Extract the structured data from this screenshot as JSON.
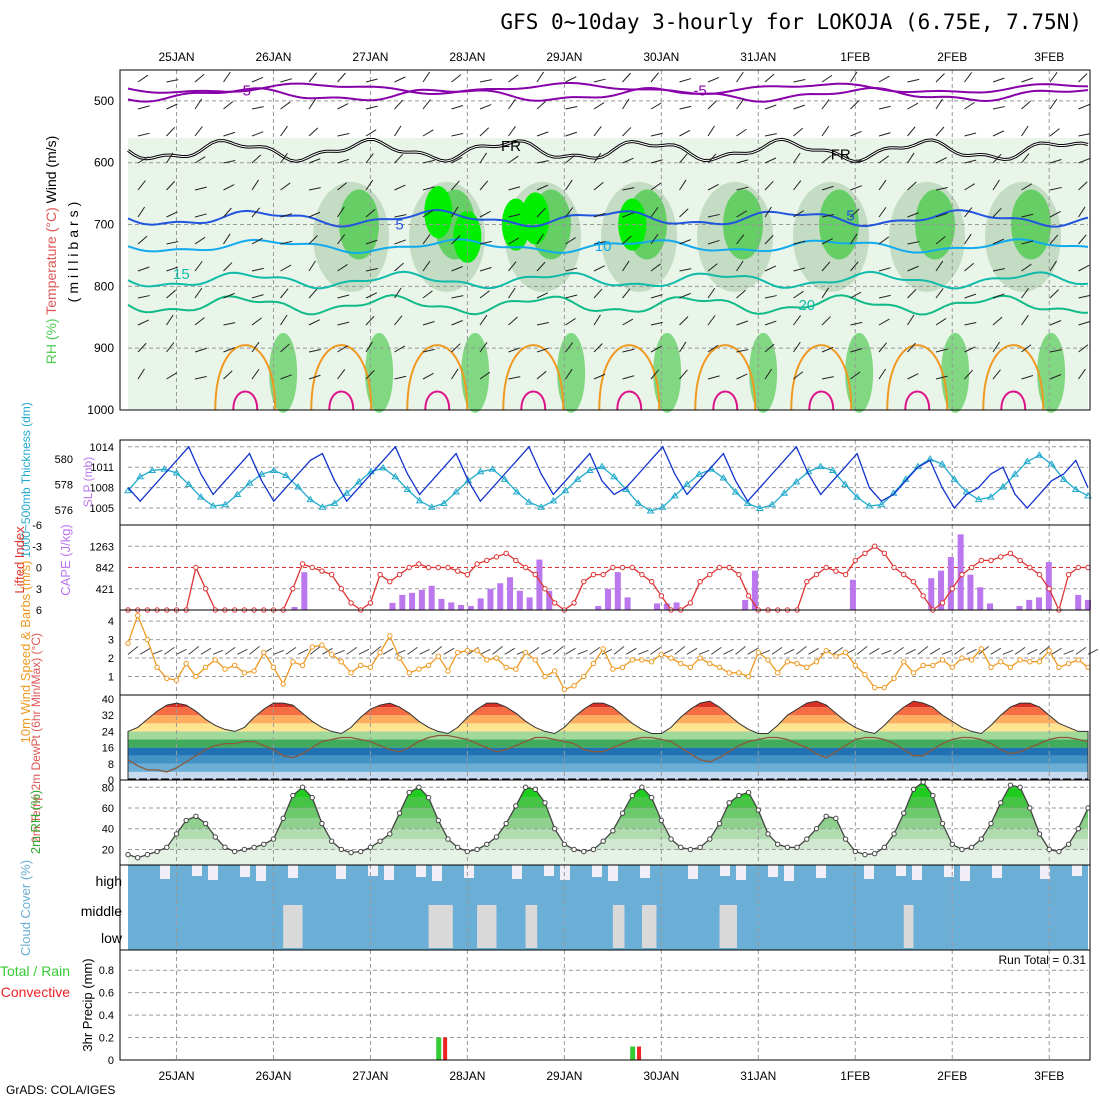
{
  "header": {
    "title": "GFS 0~10day 3-hourly for LOKOJA (6.75E, 7.75N)",
    "credit": "GrADS: COLA/IGES"
  },
  "colors": {
    "grid": "#999999",
    "rh_light": "#d9ecd9",
    "rh_mid": "#b2d2b2",
    "rh_green": "#55cc55",
    "rh_bright": "#00ee00",
    "wind_line": "#8800aa",
    "temp_cold": "#2255dd",
    "temp_cool": "#11aaee",
    "temp_teal": "#11bbaa",
    "temp_warm": "#ee9922",
    "temp_hot": "#dd1188",
    "slp": "#1133cc",
    "thickness": "#22aacc",
    "lifted_index": "#dd3333",
    "cape": "#bb77ee",
    "wind10": "#ee9922",
    "cloud": "#6baed6",
    "cloud_clear": "#d9d9d9",
    "cloud_high_clear": "#f2eef7",
    "precip_total": "#33cc33",
    "precip_conv": "#ee2222"
  },
  "chart_data": [
    {
      "type": "heatmap",
      "panel": "upper-air",
      "x_ticks": [
        "25JAN",
        "26JAN",
        "27JAN",
        "28JAN",
        "29JAN",
        "30JAN",
        "31JAN",
        "1FEB",
        "2FEB",
        "3FEB"
      ],
      "ylabel_parts": [
        "RH (%)",
        "Temperature (°C)",
        "Wind (m/s)"
      ],
      "ylabel_sub": "(millibars)",
      "yticks": [
        500,
        600,
        700,
        800,
        900,
        1000
      ],
      "ylim": [
        1000,
        450
      ],
      "contour_labels": [
        {
          "text": "-5",
          "time": 1.2,
          "p": 483
        },
        {
          "text": "-5",
          "time": 5.9,
          "p": 483
        },
        {
          "text": "FR",
          "time": 3.95,
          "p": 573
        },
        {
          "text": "FR",
          "time": 7.35,
          "p": 587
        },
        {
          "text": "5",
          "time": 2.8,
          "p": 700
        },
        {
          "text": "5",
          "time": 7.45,
          "p": 685
        },
        {
          "text": "10",
          "time": 4.9,
          "p": 735
        },
        {
          "text": "15",
          "time": 0.55,
          "p": 780
        },
        {
          "text": "20",
          "time": 7.0,
          "p": 830
        }
      ]
    },
    {
      "type": "line",
      "panel": "slp-thickness",
      "ylabel_left": "1000~500mb Thickness (dm)",
      "ylabel_right": "SLP (mb)",
      "yticks_left": [
        576,
        578,
        580
      ],
      "yticks_right": [
        1005,
        1008,
        1011,
        1014
      ],
      "series": [
        {
          "name": "SLP",
          "values": [
            1008,
            1006,
            1008,
            1010,
            1012,
            1014,
            1010,
            1007,
            1009,
            1011,
            1013,
            1009,
            1006,
            1008,
            1010,
            1012,
            1013,
            1009,
            1006,
            1008,
            1010,
            1012,
            1014,
            1010,
            1007,
            1009,
            1011,
            1013,
            1009,
            1006,
            1008,
            1010,
            1012,
            1014,
            1010,
            1007,
            1009,
            1011,
            1013,
            1009,
            1007,
            1008,
            1010,
            1012,
            1014,
            1010,
            1007,
            1009,
            1011,
            1013,
            1009,
            1006,
            1008,
            1010,
            1012,
            1014,
            1010,
            1007,
            1009,
            1011,
            1013,
            1008,
            1006,
            1007,
            1009,
            1011,
            1012,
            1008,
            1005,
            1007,
            1008,
            1010,
            1011,
            1007,
            1005,
            1007,
            1009,
            1010,
            1012,
            1008
          ]
        },
        {
          "name": "Thickness",
          "values": [
            577.5,
            578.6,
            579.1,
            579.2,
            578.9,
            578.0,
            577.0,
            576.3,
            576.4,
            577.2,
            578.1,
            578.8,
            579.1,
            578.7,
            577.8,
            576.8,
            576.2,
            576.5,
            577.3,
            578.2,
            579.0,
            579.3,
            578.6,
            577.6,
            576.7,
            576.2,
            576.5,
            577.4,
            578.3,
            579.0,
            579.2,
            578.4,
            577.4,
            576.6,
            576.2,
            576.7,
            577.5,
            578.4,
            579.1,
            579.4,
            578.6,
            577.6,
            576.5,
            575.9,
            576.2,
            577.1,
            578.0,
            578.8,
            579.2,
            578.5,
            577.4,
            576.5,
            576.1,
            576.4,
            577.3,
            578.2,
            579.0,
            579.4,
            579.1,
            578.0,
            577.0,
            576.3,
            576.4,
            577.3,
            578.4,
            579.4,
            580.0,
            579.6,
            578.4,
            577.4,
            576.8,
            577.0,
            577.8,
            578.8,
            579.8,
            580.3,
            579.6,
            578.4,
            577.6,
            577.1
          ]
        }
      ]
    },
    {
      "type": "bar",
      "panel": "li-cape",
      "ylabel_left": "Lifted Index",
      "ylabel_right": "CAPE (J/kg)",
      "yticks_left": [
        -6,
        -3,
        0,
        3,
        6
      ],
      "yticks_right": [
        421,
        842,
        1263
      ],
      "series": [
        {
          "name": "Lifted Index",
          "values": [
            6,
            6,
            6,
            6,
            6,
            6,
            6,
            0,
            3,
            6,
            6,
            6,
            6,
            6,
            6,
            6,
            6,
            3,
            -0.5,
            0,
            0.5,
            1,
            3,
            5,
            6,
            5,
            1,
            2,
            1,
            0,
            -0.5,
            0,
            0,
            0,
            0.5,
            1,
            -0.5,
            -1,
            -1.5,
            -2,
            -1,
            0,
            1,
            3,
            5,
            6,
            5,
            2,
            1,
            1,
            0,
            0,
            0,
            1,
            2,
            4,
            6,
            6,
            5,
            2,
            1,
            0,
            0,
            1,
            4,
            6,
            6,
            6,
            6,
            6,
            2,
            1,
            0,
            0.5,
            1,
            -1,
            -2,
            -3,
            -2,
            0,
            1,
            2,
            4,
            6,
            5,
            3,
            1,
            0,
            -1,
            -1,
            -1.5,
            -2,
            -1,
            0,
            1,
            3,
            6,
            1,
            0,
            0
          ]
        },
        {
          "name": "CAPE",
          "values": [
            0,
            0,
            0,
            0,
            0,
            0,
            0,
            0,
            0,
            0,
            0,
            0,
            0,
            0,
            0,
            0,
            0,
            60,
            750,
            0,
            0,
            0,
            0,
            0,
            0,
            0,
            0,
            140,
            300,
            340,
            400,
            480,
            220,
            150,
            100,
            80,
            230,
            420,
            530,
            650,
            380,
            250,
            1000,
            380,
            0,
            0,
            0,
            0,
            80,
            420,
            750,
            250,
            0,
            0,
            130,
            130,
            150,
            0,
            0,
            0,
            0,
            0,
            0,
            200,
            780,
            0,
            0,
            0,
            0,
            0,
            0,
            0,
            0,
            0,
            600,
            0,
            0,
            0,
            0,
            0,
            0,
            0,
            630,
            780,
            1050,
            1500,
            700,
            450,
            130,
            0,
            0,
            80,
            200,
            250,
            950,
            0,
            0,
            300,
            200
          ]
        }
      ]
    },
    {
      "type": "line",
      "panel": "wind10m",
      "ylabel": "10m Wind Speed & Barbs (m/s)",
      "yticks": [
        1,
        2,
        3,
        4
      ],
      "series": [
        {
          "name": "10m wind speed",
          "values": [
            2.8,
            4.3,
            3.0,
            1.5,
            0.9,
            0.8,
            1.7,
            1.0,
            1.5,
            1.9,
            1.4,
            1.6,
            1.2,
            1.3,
            2.3,
            1.5,
            0.6,
            1.8,
            1.6,
            2.6,
            2.7,
            2.2,
            1.8,
            1.2,
            1.6,
            1.5,
            2.3,
            3.2,
            2.0,
            1.2,
            1.4,
            1.6,
            2.1,
            1.3,
            2.3,
            2.4,
            2.4,
            1.9,
            2.0,
            1.5,
            1.4,
            2.3,
            1.9,
            1.0,
            1.3,
            0.3,
            0.5,
            1.0,
            1.7,
            2.5,
            1.4,
            1.5,
            1.9,
            1.9,
            1.8,
            2.2,
            2.0,
            1.7,
            1.5,
            2.0,
            1.7,
            1.5,
            1.2,
            1.2,
            1.0,
            2.3,
            1.9,
            1.2,
            1.8,
            1.7,
            1.5,
            1.8,
            2.4,
            2.1,
            2.3,
            1.6,
            1.1,
            0.4,
            0.4,
            0.9,
            1.8,
            1.2,
            1.6,
            1.6,
            1.9,
            1.5,
            2.0,
            1.9,
            2.5,
            1.5,
            1.8,
            1.5,
            1.9,
            1.8,
            1.8,
            2.4,
            1.5,
            1.7,
            1.9,
            1.5
          ]
        }
      ]
    },
    {
      "type": "area",
      "panel": "temperature",
      "ylabel": "2m Temp 2m DewPt (6hr Min/Max) (°C)",
      "yticks": [
        0,
        8,
        16,
        24,
        32,
        40
      ],
      "series": [
        {
          "name": "2m Temp",
          "values": [
            24,
            26,
            30,
            34,
            37,
            38,
            37,
            34,
            30,
            27,
            25,
            24,
            26,
            31,
            35,
            38,
            38,
            37,
            33,
            29,
            26,
            24,
            23,
            26,
            31,
            35,
            37,
            38,
            36,
            33,
            29,
            26,
            24,
            23,
            26,
            31,
            35,
            38,
            38,
            36,
            33,
            29,
            26,
            24,
            23,
            26,
            31,
            35,
            38,
            38,
            36,
            32,
            28,
            25,
            23,
            23,
            26,
            31,
            35,
            38,
            39,
            36,
            32,
            28,
            25,
            23,
            23,
            27,
            32,
            35,
            38,
            39,
            37,
            33,
            29,
            26,
            24,
            23,
            27,
            32,
            36,
            39,
            38,
            36,
            32,
            29,
            26,
            24,
            23,
            27,
            32,
            36,
            38,
            38,
            36,
            32,
            28,
            26,
            24,
            24
          ]
        },
        {
          "name": "2m DewPt",
          "values": [
            10,
            7,
            5,
            5,
            4,
            6,
            9,
            12,
            15,
            17,
            18,
            18,
            19,
            19,
            17,
            15,
            12,
            11,
            13,
            16,
            19,
            20,
            21,
            21,
            20,
            19,
            17,
            15,
            14,
            16,
            19,
            21,
            22,
            22,
            21,
            20,
            18,
            16,
            14,
            15,
            17,
            19,
            21,
            21,
            20,
            19,
            18,
            15,
            14,
            14,
            16,
            18,
            20,
            21,
            21,
            20,
            19,
            16,
            13,
            10,
            9,
            11,
            14,
            17,
            19,
            20,
            21,
            21,
            20,
            18,
            16,
            13,
            11,
            14,
            17,
            20,
            21,
            21,
            20,
            18,
            15,
            12,
            12,
            15,
            18,
            20,
            21,
            21,
            20,
            18,
            15,
            13,
            14,
            16,
            18,
            20,
            21,
            21,
            20,
            19
          ]
        }
      ]
    },
    {
      "type": "area",
      "panel": "rh2m",
      "ylabel": "2m RH (%)",
      "yticks": [
        20,
        40,
        60,
        80
      ],
      "series": [
        {
          "name": "2m RH",
          "values": [
            15,
            12,
            15,
            18,
            22,
            35,
            48,
            52,
            45,
            32,
            22,
            18,
            20,
            22,
            25,
            30,
            50,
            72,
            80,
            70,
            45,
            28,
            20,
            17,
            18,
            22,
            28,
            35,
            55,
            75,
            80,
            70,
            48,
            30,
            22,
            18,
            20,
            25,
            32,
            45,
            62,
            80,
            78,
            65,
            40,
            25,
            20,
            18,
            20,
            28,
            38,
            55,
            72,
            80,
            70,
            48,
            30,
            22,
            20,
            22,
            30,
            45,
            65,
            72,
            75,
            58,
            35,
            25,
            22,
            22,
            30,
            40,
            52,
            50,
            30,
            18,
            15,
            16,
            22,
            35,
            55,
            78,
            85,
            72,
            45,
            25,
            20,
            22,
            30,
            45,
            65,
            82,
            80,
            60,
            35,
            20,
            18,
            25,
            40,
            60
          ]
        }
      ]
    },
    {
      "type": "heatmap",
      "panel": "cloud",
      "ylabel": "Cloud Cover (%)",
      "row_labels": [
        "high",
        "middle",
        "low"
      ]
    },
    {
      "type": "bar",
      "panel": "precip",
      "ylabel_left_parts": [
        "Total",
        "Rain",
        "Convective"
      ],
      "ylabel_right": "3hr Precip (mm)",
      "yticks": [
        0,
        0.2,
        0.4,
        0.6,
        0.8
      ],
      "annotation": "Run Total = 0.31",
      "series": [
        {
          "name": "Total",
          "bars": [
            {
              "time": 3.22,
              "value": 0.2
            },
            {
              "time": 5.22,
              "value": 0.12
            }
          ]
        },
        {
          "name": "Convective",
          "bars": [
            {
              "time": 3.26,
              "value": 0.2
            },
            {
              "time": 5.26,
              "value": 0.12
            }
          ]
        }
      ]
    }
  ]
}
